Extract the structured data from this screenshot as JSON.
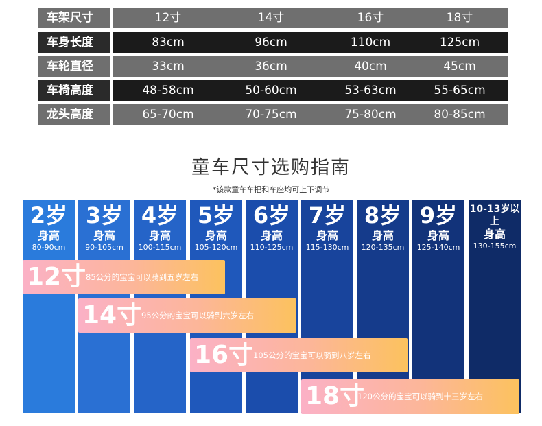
{
  "table": {
    "rows": [
      {
        "label": "车架尺寸",
        "values": [
          "12寸",
          "14寸",
          "16寸",
          "18寸"
        ],
        "style": "gray"
      },
      {
        "label": "车身长度",
        "values": [
          "83cm",
          "96cm",
          "110cm",
          "125cm"
        ],
        "style": "dark"
      },
      {
        "label": "车轮直径",
        "values": [
          "33cm",
          "36cm",
          "40cm",
          "45cm"
        ],
        "style": "gray"
      },
      {
        "label": "车椅高度",
        "values": [
          "48-58cm",
          "50-60cm",
          "53-63cm",
          "55-65cm"
        ],
        "style": "dark"
      },
      {
        "label": "龙头高度",
        "values": [
          "65-70cm",
          "70-75cm",
          "75-80cm",
          "80-85cm"
        ],
        "style": "gray"
      }
    ]
  },
  "guide": {
    "title": "童车尺寸选购指南",
    "note": "*该款童车车把和车座均可上下调节",
    "height_label": "身高",
    "ages": [
      {
        "age": "2岁",
        "range": "80-90cm",
        "color": "#2a7bdc"
      },
      {
        "age": "3岁",
        "range": "90-105cm",
        "color": "#2a70d3"
      },
      {
        "age": "4岁",
        "range": "100-115cm",
        "color": "#2564c8"
      },
      {
        "age": "5岁",
        "range": "105-120cm",
        "color": "#1f58bb"
      },
      {
        "age": "6岁",
        "range": "110-125cm",
        "color": "#1b4dac"
      },
      {
        "age": "7岁",
        "range": "115-130cm",
        "color": "#18449c"
      },
      {
        "age": "8岁",
        "range": "120-135cm",
        "color": "#153b8b"
      },
      {
        "age": "9岁",
        "range": "125-140cm",
        "color": "#12337a"
      },
      {
        "age": "10-13岁以上",
        "range": "130-155cm",
        "color": "#0f2b67"
      }
    ],
    "sizes": [
      {
        "size": "12寸",
        "desc": "85公分的宝宝可以骑到五岁左右"
      },
      {
        "size": "14寸",
        "desc": "95公分的宝宝可以骑到六岁左右"
      },
      {
        "size": "16寸",
        "desc": "105公分的宝宝可以骑到八岁左右"
      },
      {
        "size": "18寸",
        "desc": "120公分的宝宝可以骑到十三岁左右"
      }
    ]
  }
}
